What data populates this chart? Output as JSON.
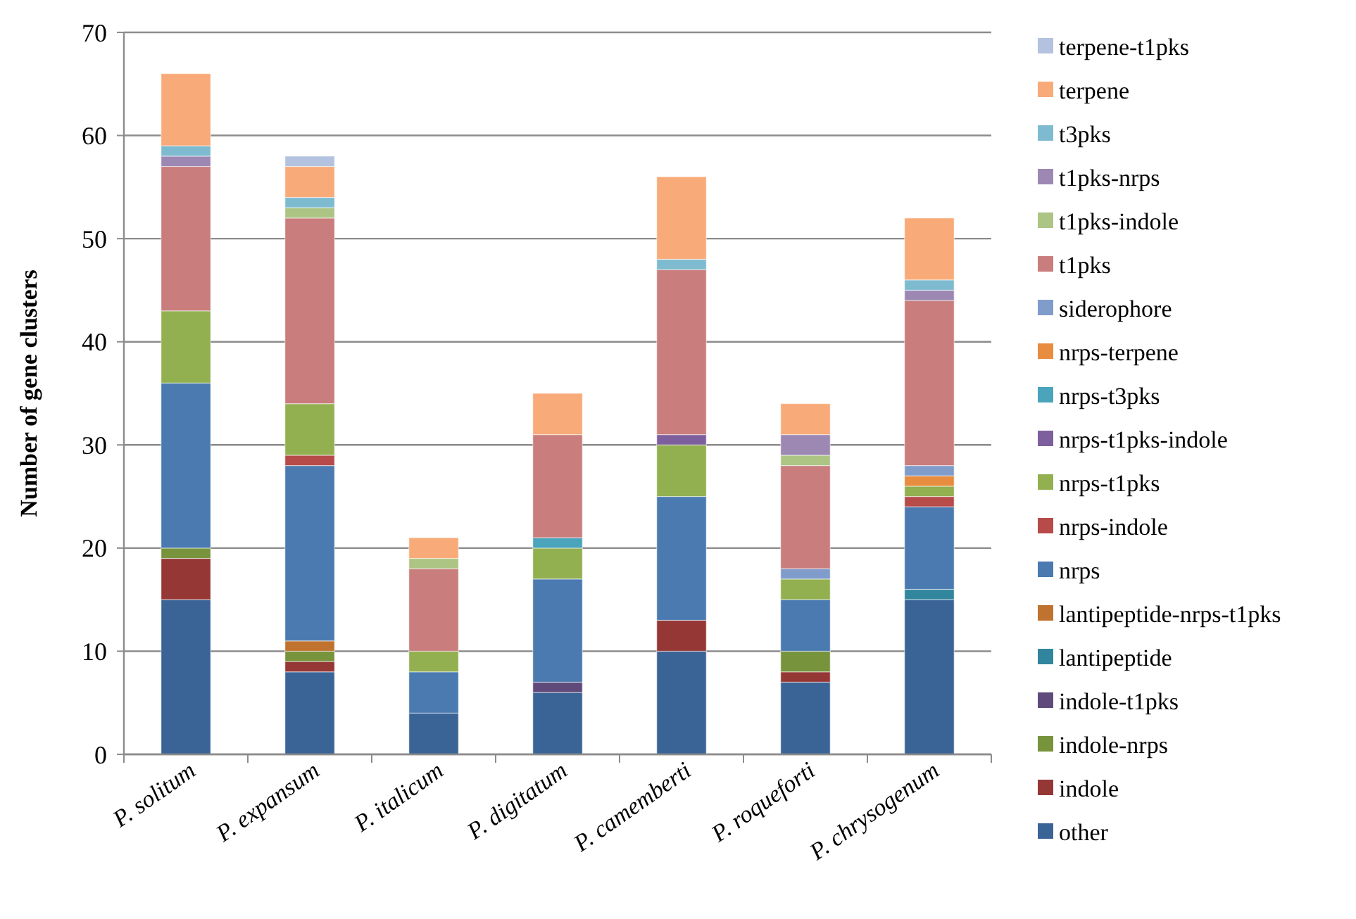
{
  "chart_data": {
    "type": "bar",
    "stacked": true,
    "ylabel": "Number of gene clusters",
    "categories": [
      "P. solitum",
      "P. expansum",
      "P. italicum",
      "P. digitatum",
      "P. camemberti",
      "P. roqueforti",
      "P. chrysogenum"
    ],
    "ylim": [
      0,
      70
    ],
    "yticks": [
      0,
      10,
      20,
      30,
      40,
      50,
      60,
      70
    ],
    "grid": "y",
    "legend": "right",
    "series": [
      {
        "name": "other",
        "color": "#3b6496",
        "values": [
          15,
          8,
          4,
          6,
          10,
          7,
          15
        ]
      },
      {
        "name": "indole",
        "color": "#953735",
        "values": [
          4,
          1,
          0,
          0,
          3,
          1,
          0
        ]
      },
      {
        "name": "indole-nrps",
        "color": "#77933c",
        "values": [
          1,
          1,
          0,
          0,
          0,
          2,
          0
        ]
      },
      {
        "name": "indole-t1pks",
        "color": "#604a7b",
        "values": [
          0,
          0,
          0,
          1,
          0,
          0,
          0
        ]
      },
      {
        "name": "lantipeptide",
        "color": "#31859c",
        "values": [
          0,
          0,
          0,
          0,
          0,
          0,
          1
        ]
      },
      {
        "name": "lantipeptide-nrps-t1pks",
        "color": "#c0732f",
        "values": [
          0,
          1,
          0,
          0,
          0,
          0,
          0
        ]
      },
      {
        "name": "nrps",
        "color": "#4a7ab0",
        "values": [
          16,
          17,
          4,
          10,
          12,
          5,
          8
        ]
      },
      {
        "name": "nrps-indole",
        "color": "#b74b4a",
        "values": [
          0,
          1,
          0,
          0,
          0,
          0,
          1
        ]
      },
      {
        "name": "nrps-t1pks",
        "color": "#92b050",
        "values": [
          7,
          5,
          2,
          3,
          5,
          2,
          1
        ]
      },
      {
        "name": "nrps-t1pks-indole",
        "color": "#7e5f9e",
        "values": [
          0,
          0,
          0,
          0,
          1,
          0,
          0
        ]
      },
      {
        "name": "nrps-t3pks",
        "color": "#4aa4bb",
        "values": [
          0,
          0,
          0,
          1,
          0,
          0,
          0
        ]
      },
      {
        "name": "nrps-terpene",
        "color": "#e88c3f",
        "values": [
          0,
          0,
          0,
          0,
          0,
          0,
          1
        ]
      },
      {
        "name": "siderophore",
        "color": "#7f9ccb",
        "values": [
          0,
          0,
          0,
          0,
          0,
          1,
          1
        ]
      },
      {
        "name": "t1pks",
        "color": "#c97d7c",
        "values": [
          14,
          18,
          8,
          10,
          16,
          10,
          16
        ]
      },
      {
        "name": "t1pks-indole",
        "color": "#acc585",
        "values": [
          0,
          1,
          1,
          0,
          0,
          1,
          0
        ]
      },
      {
        "name": "t1pks-nrps",
        "color": "#9d88b4",
        "values": [
          1,
          0,
          0,
          0,
          0,
          2,
          1
        ]
      },
      {
        "name": "t3pks",
        "color": "#7fbbd0",
        "values": [
          1,
          1,
          0,
          0,
          1,
          0,
          1
        ]
      },
      {
        "name": "terpene",
        "color": "#f8aa78",
        "values": [
          7,
          3,
          2,
          4,
          8,
          3,
          6
        ]
      },
      {
        "name": "terpene-t1pks",
        "color": "#b3c3df",
        "values": [
          0,
          1,
          0,
          0,
          0,
          0,
          0
        ]
      }
    ]
  }
}
